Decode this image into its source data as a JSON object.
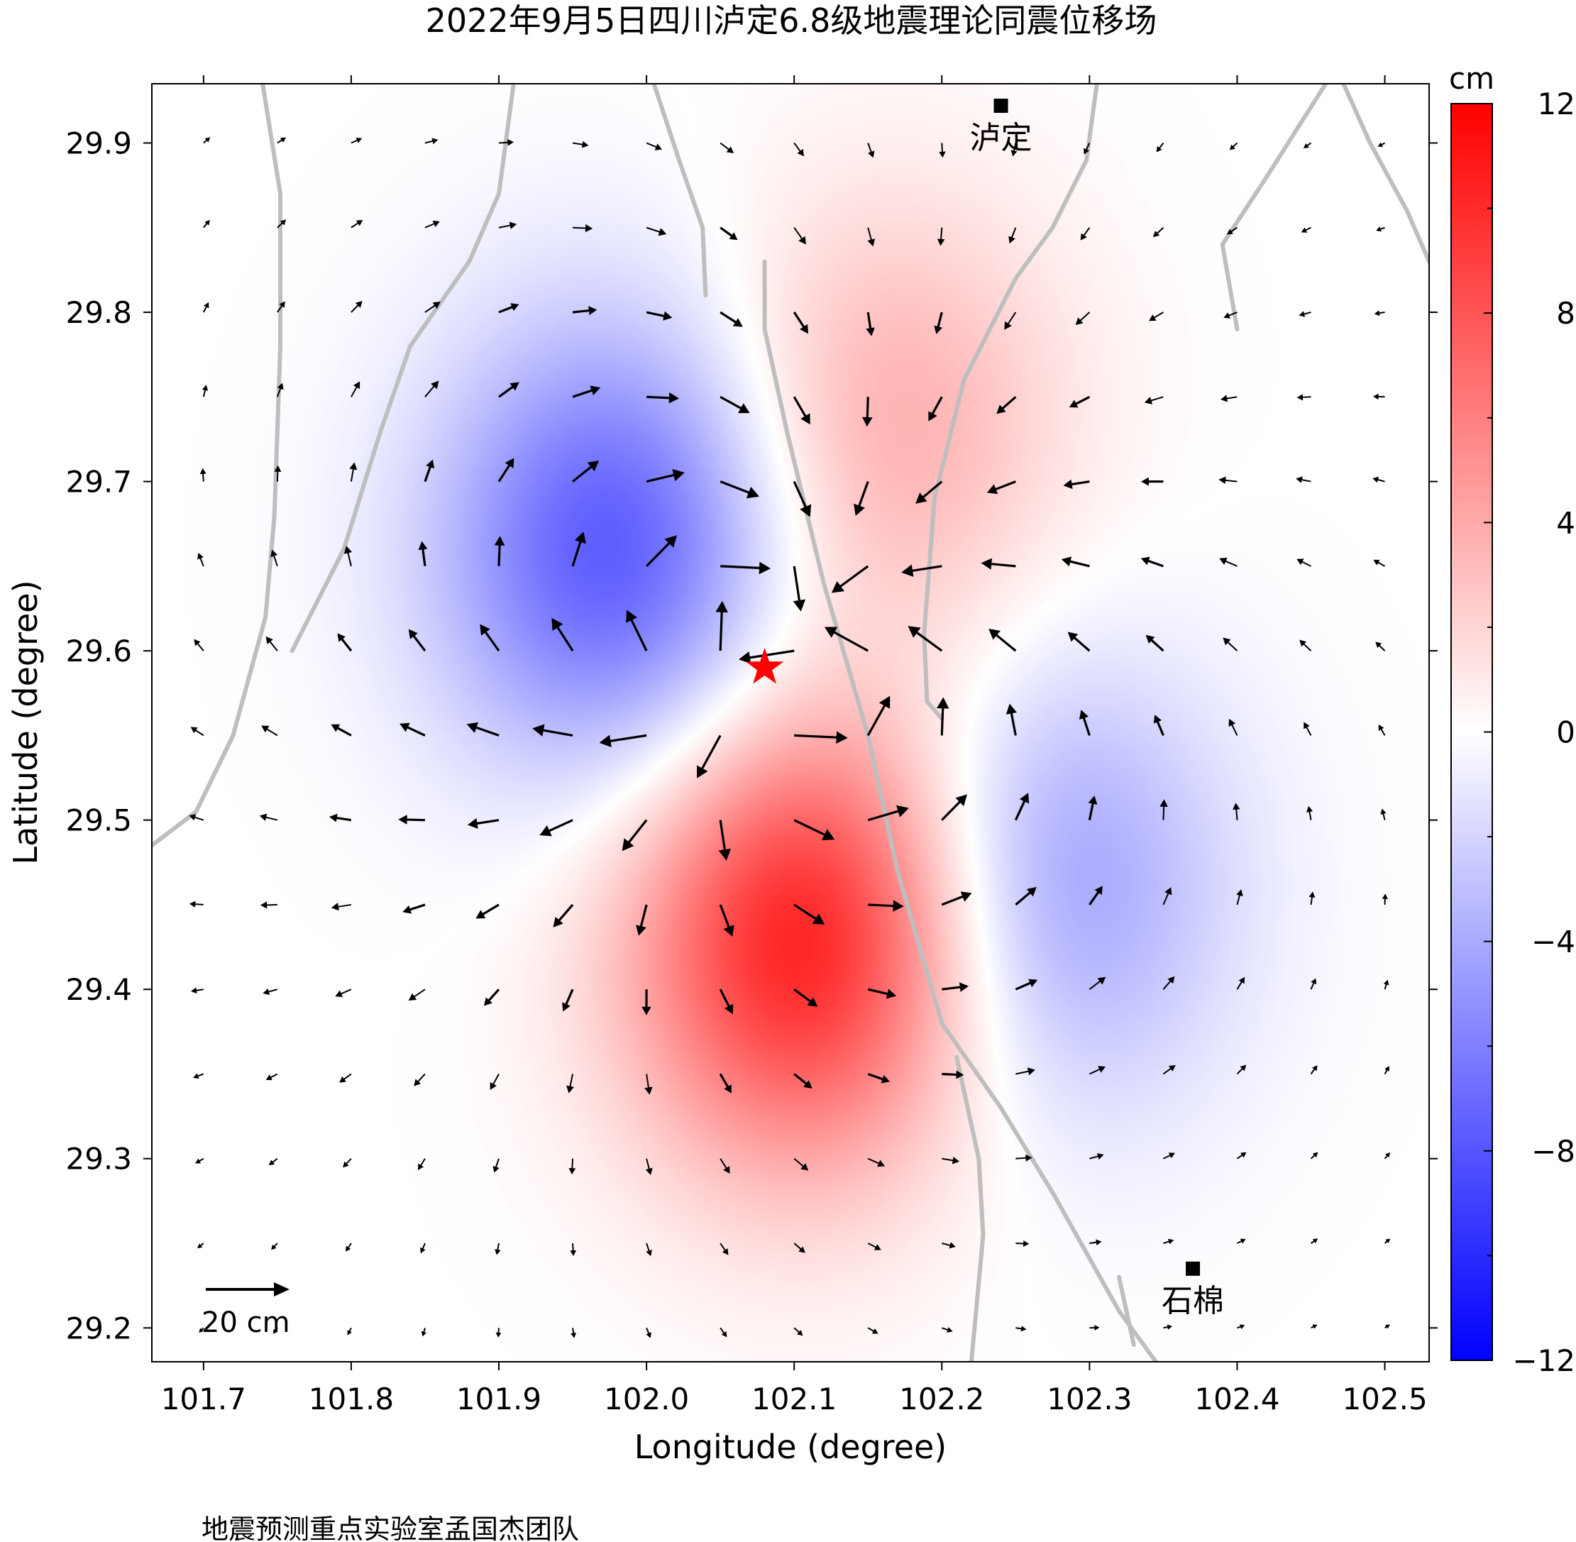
{
  "title": "2022年9月5日四川泸定6.8级地震理论同震位移场",
  "credit": "地震预测重点实验室孟国杰团队",
  "map": {
    "x_label": "Longitude (degree)",
    "y_label": "Latitude (degree)",
    "xlim": [
      101.665,
      102.53
    ],
    "ylim": [
      29.18,
      29.935
    ],
    "x_ticks": [
      "101.7",
      "101.8",
      "101.9",
      "102.0",
      "102.1",
      "102.2",
      "102.3",
      "102.4",
      "102.5"
    ],
    "y_ticks": [
      "29.2",
      "29.3",
      "29.4",
      "29.5",
      "29.6",
      "29.7",
      "29.8",
      "29.9"
    ],
    "epicenter": {
      "lon": 102.08,
      "lat": 29.59,
      "color": "#ff0000",
      "symbol": "star"
    },
    "towns": [
      {
        "name": "泸定",
        "lon": 102.24,
        "lat": 29.922
      },
      {
        "name": "石棉",
        "lon": 102.37,
        "lat": 29.235
      }
    ],
    "scale_arrow": {
      "label": "20 cm",
      "value_cm": 20
    },
    "faults_color": "#bebebe",
    "grid_shown": false
  },
  "colorbar": {
    "unit": "cm",
    "ticks": [
      "12",
      "8",
      "4",
      "0",
      "−4",
      "−8",
      "−12"
    ],
    "range": [
      -12,
      12
    ],
    "low_color": "#0000ff",
    "mid_color": "#ffffff",
    "high_color": "#ff0000"
  },
  "chart_data": {
    "type": "heatmap",
    "quantity": "vertical coseismic displacement with horizontal displacement vectors",
    "unit": "cm",
    "vertical_lobes": [
      {
        "sign": "uplift",
        "center": [
          102.11,
          29.43
        ],
        "peak_cm": 11
      },
      {
        "sign": "uplift",
        "center": [
          102.16,
          29.73
        ],
        "peak_cm": 4
      },
      {
        "sign": "subsidence",
        "center": [
          101.98,
          29.66
        ],
        "peak_cm": -8
      },
      {
        "sign": "subsidence",
        "center": [
          102.27,
          29.46
        ],
        "peak_cm": -5
      }
    ],
    "vector_grid": {
      "lon_start": 101.7,
      "lon_step": 0.05,
      "lat_start": 29.9,
      "lat_step": -0.05,
      "n_lon": 17,
      "n_lat": 15
    }
  }
}
